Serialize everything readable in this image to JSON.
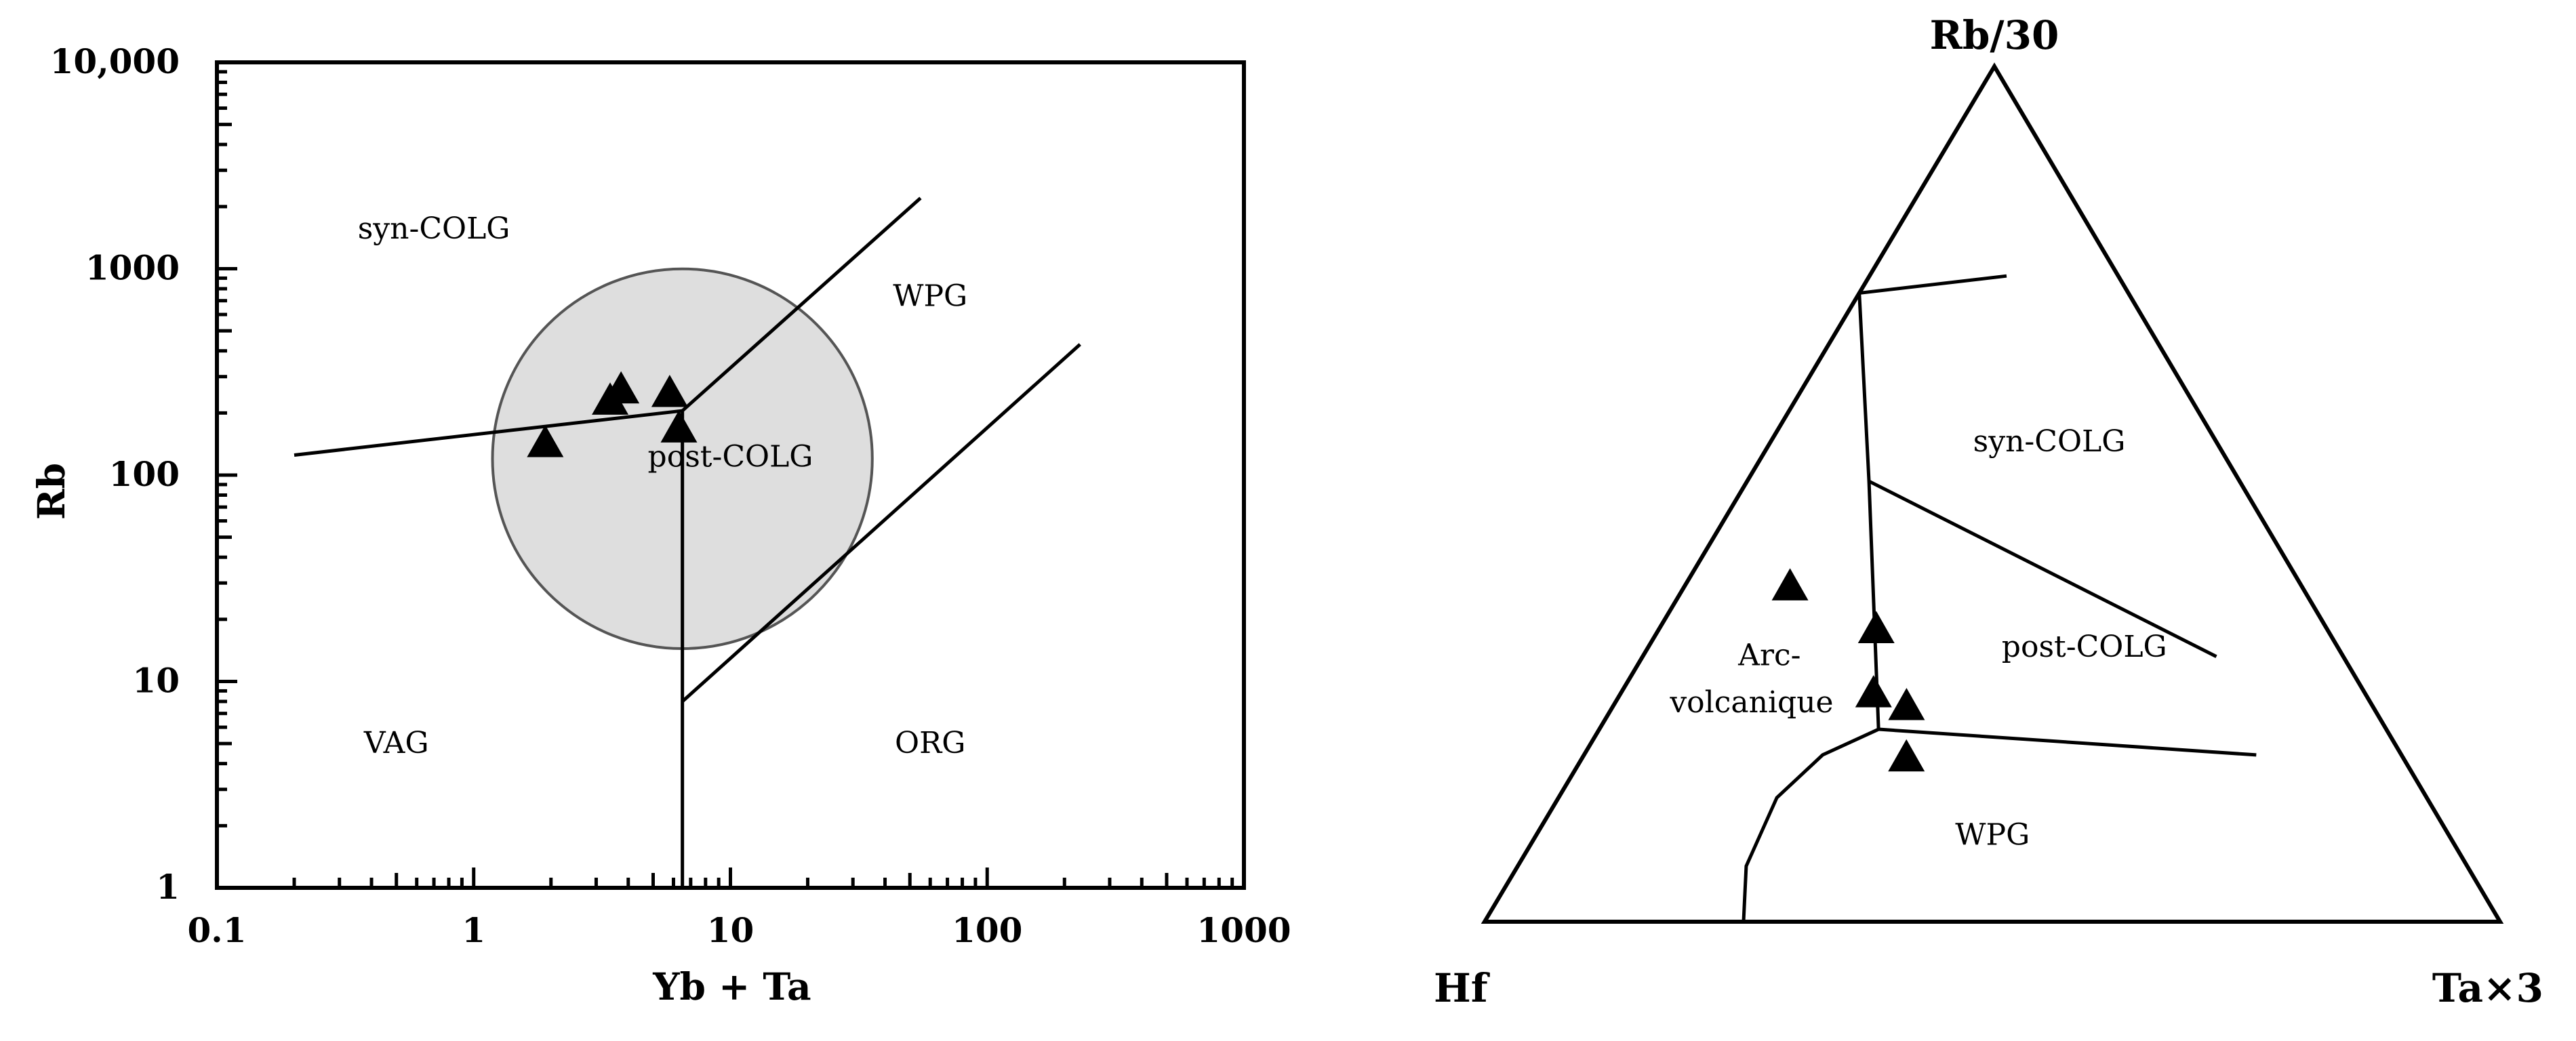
{
  "chart_data": [
    {
      "type": "scatter",
      "scale": "log-log",
      "title": "",
      "xlabel": "Yb + Ta",
      "ylabel": "Rb",
      "xlim": [
        0.1,
        1000
      ],
      "ylim": [
        1,
        10000
      ],
      "x_tick_labels": [
        "0.1",
        "1",
        "10",
        "100",
        "1000"
      ],
      "y_tick_labels": [
        "1",
        "10",
        "100",
        "1000",
        "10,000"
      ],
      "x_tick_values": [
        0.1,
        1,
        10,
        100,
        1000
      ],
      "y_tick_values": [
        1,
        10,
        100,
        1000,
        10000
      ],
      "marker": "filled-triangle",
      "grid": false,
      "points": [
        {
          "x": 1.9,
          "y": 140
        },
        {
          "x": 3.4,
          "y": 225
        },
        {
          "x": 3.75,
          "y": 255
        },
        {
          "x": 5.8,
          "y": 245
        },
        {
          "x": 6.3,
          "y": 165
        }
      ],
      "field_labels": [
        {
          "text": "syn-COLG",
          "x": 0.7,
          "y": 1400
        },
        {
          "text": "WPG",
          "x": 60,
          "y": 660
        },
        {
          "text": "post-COLG",
          "x": 10,
          "y": 110
        },
        {
          "text": "VAG",
          "x": 0.5,
          "y": 4.5
        },
        {
          "text": "ORG",
          "x": 60,
          "y": 4.5
        }
      ],
      "boundaries": [
        [
          [
            0.2,
            125
          ],
          [
            6.5,
            205
          ]
        ],
        [
          [
            6.5,
            205
          ],
          [
            55,
            2200
          ]
        ],
        [
          [
            6.5,
            1
          ],
          [
            6.5,
            205
          ]
        ],
        [
          [
            6.5,
            8
          ],
          [
            230,
            430
          ]
        ]
      ],
      "post_colg_circle": {
        "center": [
          6.5,
          120
        ],
        "radius_log_decades": 0.92
      }
    },
    {
      "type": "scatter",
      "subtype": "ternary",
      "title": "",
      "apex_labels": {
        "top": "Rb/30",
        "left": "Hf",
        "right": "Ta×3"
      },
      "marker": "filled-triangle",
      "grid": false,
      "points": [
        {
          "rb": 0.39,
          "hf": 0.505,
          "ta": 0.105
        },
        {
          "rb": 0.34,
          "hf": 0.445,
          "ta": 0.215
        },
        {
          "rb": 0.265,
          "hf": 0.485,
          "ta": 0.25
        },
        {
          "rb": 0.25,
          "hf": 0.46,
          "ta": 0.29
        },
        {
          "rb": 0.19,
          "hf": 0.49,
          "ta": 0.32
        }
      ],
      "field_labels": [
        {
          "text": "syn-COLG",
          "rb": 0.55,
          "hf": 0.17,
          "ta": 0.28
        },
        {
          "text": "post-COLG",
          "rb": 0.31,
          "hf": 0.255,
          "ta": 0.435
        },
        {
          "text": "Arc-",
          "rb": 0.3,
          "hf": 0.57,
          "ta": 0.13
        },
        {
          "text": "volcanique",
          "rb": 0.245,
          "hf": 0.615,
          "ta": 0.14
        },
        {
          "text": "WPG",
          "rb": 0.09,
          "hf": 0.455,
          "ta": 0.455
        }
      ],
      "boundaries": [
        [
          [
            0.735,
            0.265,
            0.0
          ],
          [
            0.755,
            0.11,
            0.135
          ]
        ],
        [
          [
            0.735,
            0.265,
            0.0
          ],
          [
            0.515,
            0.365,
            0.12
          ],
          [
            0.225,
            0.5,
            0.275
          ]
        ],
        [
          [
            0.515,
            0.365,
            0.12
          ],
          [
            0.31,
            0.125,
            0.565
          ]
        ],
        [
          [
            0.225,
            0.5,
            0.275
          ],
          [
            0.195,
            0.143,
            0.662
          ]
        ],
        [
          [
            0.225,
            0.5,
            0.275
          ],
          [
            0.195,
            0.57,
            0.235
          ],
          [
            0.145,
            0.64,
            0.215
          ],
          [
            0.065,
            0.71,
            0.225
          ],
          [
            0.0,
            0.745,
            0.255
          ]
        ]
      ]
    }
  ]
}
